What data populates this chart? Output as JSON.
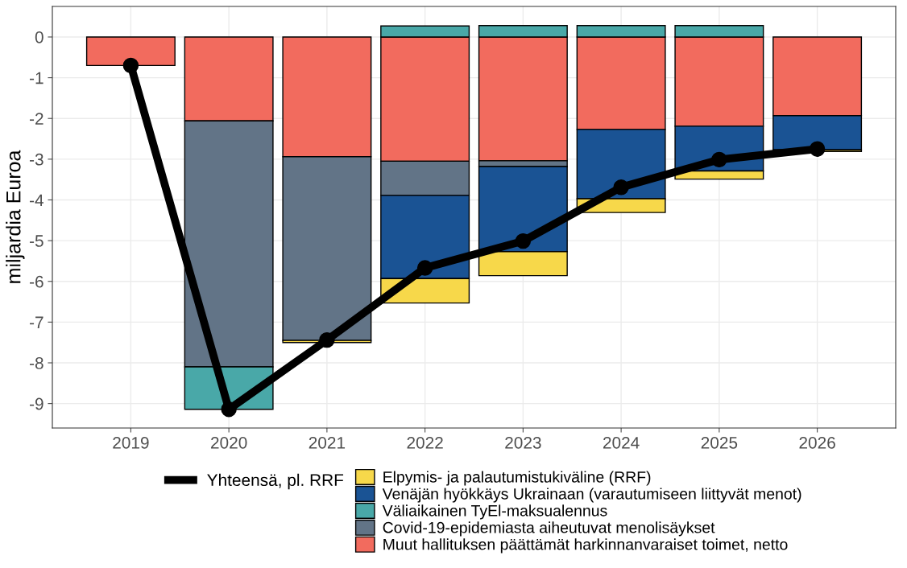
{
  "chart_data": {
    "type": "bar",
    "stacked": true,
    "ylabel": "miljardia Euroa",
    "categories": [
      "2019",
      "2020",
      "2021",
      "2022",
      "2023",
      "2024",
      "2025",
      "2026"
    ],
    "series": [
      {
        "name": "Muut hallituksen päättämät harkinnanvaraiset toimet, netto",
        "color": "#f26b5e",
        "values": [
          -0.7,
          -2.06,
          -2.94,
          -3.05,
          -3.04,
          -2.27,
          -2.19,
          -1.93
        ]
      },
      {
        "name": "Covid-19-epidemiasta aiheutuvat menolisäykset",
        "color": "#627487",
        "values": [
          null,
          -6.04,
          -4.51,
          -0.84,
          -0.14,
          null,
          null,
          null
        ]
      },
      {
        "name": "Väliaikainen TyEl-maksualennus",
        "color": "#49a8a8",
        "values": [
          null,
          -1.04,
          null,
          0.27,
          0.28,
          0.28,
          0.28,
          null
        ]
      },
      {
        "name": "Venäjän hyökkäys Ukrainaan (varautumiseen liittyvät menot)",
        "color": "#1a5394",
        "values": [
          null,
          null,
          null,
          -2.04,
          -2.09,
          -1.7,
          -1.1,
          -0.84
        ]
      },
      {
        "name": "Elpymis- ja palautumistukiväline (RRF)",
        "color": "#f7d84a",
        "values": [
          null,
          null,
          -0.05,
          -0.6,
          -0.59,
          -0.34,
          -0.2,
          -0.04
        ]
      },
      {
        "name": "Yhteensä, pl. RRF",
        "type": "line",
        "color": "#000000",
        "marker": "circle",
        "values": [
          -0.7,
          -9.14,
          -7.44,
          -5.67,
          -5.01,
          -3.69,
          -3.01,
          -2.75
        ]
      }
    ],
    "ylim": [
      -9.6,
      0.75
    ],
    "yticks": [
      0,
      -1,
      -2,
      -3,
      -4,
      -5,
      -6,
      -7,
      -8,
      -9
    ],
    "grid": true,
    "legend": "bottom"
  }
}
